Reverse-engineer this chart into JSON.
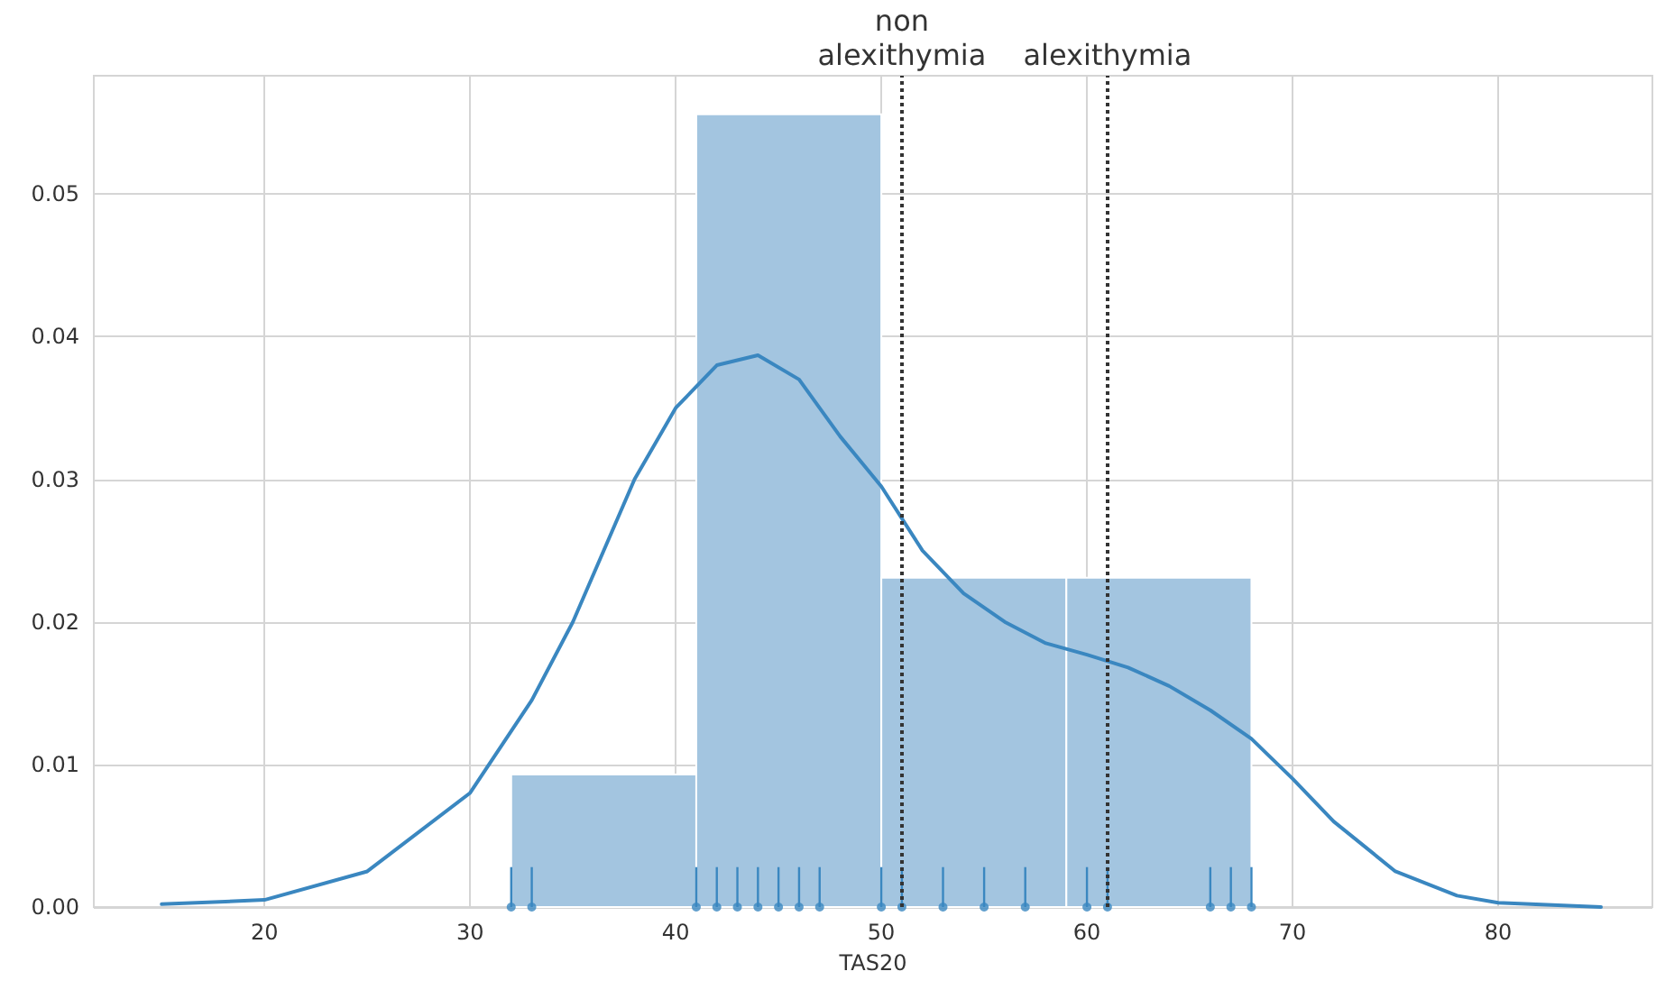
{
  "chart_data": {
    "type": "histogram",
    "xlabel": "TAS20",
    "bins": [
      32,
      41,
      50,
      59,
      68
    ],
    "values": [
      0.0093,
      0.0556,
      0.0231,
      0.0231
    ],
    "color": "#a3c5e0",
    "series": [
      {
        "type": "line",
        "color": "#3a87c0",
        "x": [
          15,
          20,
          25,
          30,
          33,
          35,
          38,
          40,
          42,
          44,
          46,
          48,
          50,
          52,
          54,
          56,
          58,
          60,
          62,
          64,
          66,
          68,
          70,
          72,
          75,
          78,
          80,
          85
        ],
        "values": [
          0.0002,
          0.0005,
          0.0025,
          0.008,
          0.0145,
          0.02,
          0.03,
          0.035,
          0.038,
          0.0387,
          0.037,
          0.033,
          0.0295,
          0.025,
          0.022,
          0.02,
          0.0185,
          0.0177,
          0.0168,
          0.0155,
          0.0138,
          0.0118,
          0.009,
          0.006,
          0.0025,
          0.0008,
          0.0003,
          0.0
        ]
      },
      {
        "type": "scatter",
        "marker": "circle",
        "color": "#3a87c0",
        "x": [
          32,
          33,
          41,
          42,
          43,
          44,
          45,
          46,
          47,
          50,
          51,
          53,
          55,
          57,
          60,
          61,
          66,
          67,
          68
        ],
        "values": [
          0,
          0,
          0,
          0,
          0,
          0,
          0,
          0,
          0,
          0,
          0,
          0,
          0,
          0,
          0,
          0,
          0,
          0,
          0
        ],
        "errors": [
          [
            0,
            0.0028
          ],
          [
            0,
            0.0028
          ],
          [
            0,
            0.0028
          ],
          [
            0,
            0.0028
          ],
          [
            0,
            0.0028
          ],
          [
            0,
            0.0028
          ],
          [
            0,
            0.0028
          ],
          [
            0,
            0.0028
          ],
          [
            0,
            0.0028
          ],
          [
            0,
            0.0028
          ],
          [
            0,
            0.0028
          ],
          [
            0,
            0.0028
          ],
          [
            0,
            0.0028
          ],
          [
            0,
            0.0028
          ],
          [
            0,
            0.0028
          ],
          [
            0,
            0.0028
          ],
          [
            0,
            0.0028
          ],
          [
            0,
            0.0028
          ],
          [
            0,
            0.0028
          ]
        ]
      }
    ],
    "ref_lines": [
      {
        "axis": "x",
        "value": 51,
        "label": "non\nalexithymia",
        "line_style": "dotted",
        "color": "#333333"
      },
      {
        "axis": "x",
        "value": 61,
        "label": "alexithymia",
        "line_style": "dotted",
        "color": "#333333"
      }
    ],
    "xlim": [
      11.7,
      87.5
    ],
    "xticks": [
      20,
      30,
      40,
      50,
      60,
      70,
      80
    ],
    "ylim": [
      0,
      0.0583
    ],
    "yticks": [
      {
        "value": 0,
        "label": "0.00"
      },
      {
        "value": 0.01,
        "label": "0.01"
      },
      {
        "value": 0.02,
        "label": "0.02"
      },
      {
        "value": 0.03,
        "label": "0.03"
      },
      {
        "value": 0.04,
        "label": "0.04"
      },
      {
        "value": 0.05,
        "label": "0.05"
      }
    ],
    "grid": true
  }
}
